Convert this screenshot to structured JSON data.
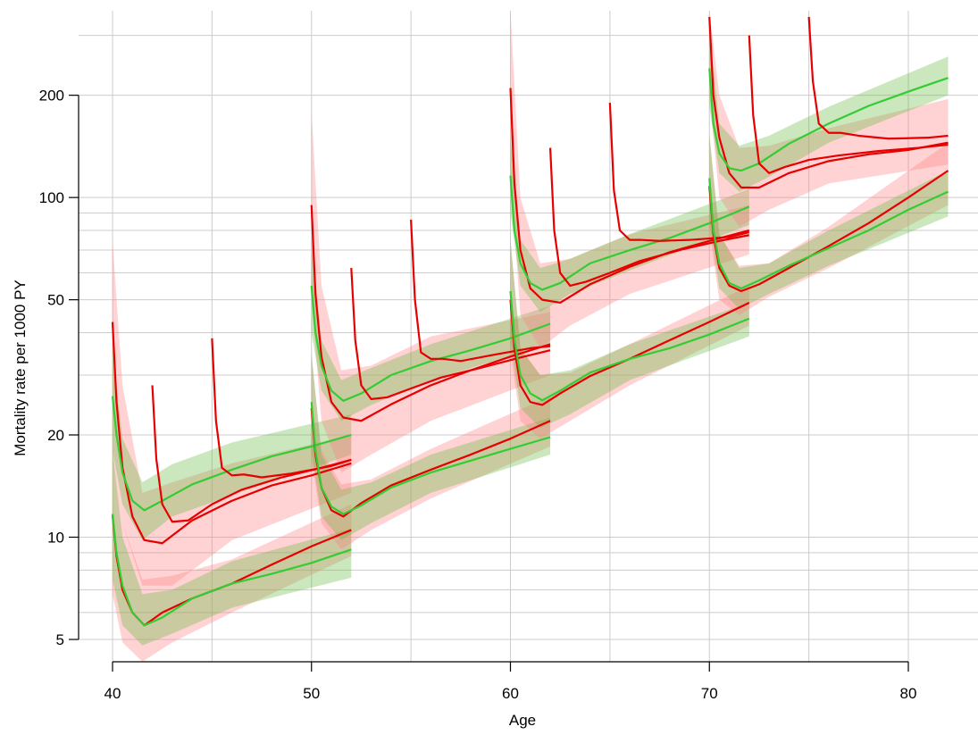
{
  "chart_data": {
    "type": "line",
    "xlabel": "Age",
    "ylabel": "Mortality rate per 1000 PY",
    "y_scale": "log",
    "xlim": [
      37.4,
      84.3
    ],
    "ylim": [
      4.4,
      330
    ],
    "x_ticks": [
      40,
      50,
      60,
      70,
      80
    ],
    "x_tick_labels": [
      "40",
      "50",
      "60",
      "70",
      "80"
    ],
    "y_ticks": [
      5,
      10,
      20,
      50,
      100,
      200
    ],
    "y_tick_labels": [
      "5",
      "10",
      "20",
      "50",
      "100",
      "200"
    ],
    "grid": true,
    "colors": {
      "red": "#e60000",
      "green": "#33cc33",
      "red_band": "#ff8080",
      "green_band": "#66bb44",
      "grid": "#cccccc"
    },
    "series": [
      {
        "color": "red",
        "x": [
          40,
          40.2,
          40.5,
          41,
          41.6,
          42.5,
          44,
          46,
          48,
          50,
          52
        ],
        "y": [
          11.6,
          8.8,
          7.0,
          6.0,
          5.5,
          6.0,
          6.6,
          7.3,
          8.3,
          9.4,
          10.5
        ]
      },
      {
        "color": "green",
        "x": [
          40,
          40.2,
          40.5,
          41,
          41.6,
          42.5,
          44,
          46,
          48,
          50,
          52
        ],
        "y": [
          11.7,
          9.0,
          7.2,
          6.0,
          5.5,
          5.8,
          6.6,
          7.3,
          7.8,
          8.4,
          9.2
        ]
      },
      {
        "color": "red",
        "x": [
          40,
          40.2,
          40.5,
          41,
          41.6,
          42.5,
          44,
          46,
          48,
          50,
          52
        ],
        "y": [
          43,
          25,
          16,
          11.5,
          9.8,
          9.6,
          11.2,
          12.8,
          14.2,
          15.2,
          16.5
        ]
      },
      {
        "color": "green",
        "x": [
          40,
          40.2,
          40.5,
          41,
          41.6,
          42.5,
          44,
          46,
          48,
          50,
          52
        ],
        "y": [
          26,
          20,
          15.5,
          12.8,
          12.0,
          12.8,
          14.3,
          15.8,
          17.3,
          18.5,
          20.0
        ]
      },
      {
        "color": "red",
        "x": [
          42,
          42.2,
          42.5,
          43,
          43.8,
          45,
          46.5,
          48.5,
          50.5,
          52
        ],
        "y": [
          28,
          17,
          12.5,
          11.1,
          11.2,
          12.5,
          13.8,
          15.0,
          16.0,
          16.9
        ]
      },
      {
        "color": "red",
        "x": [
          45,
          45.2,
          45.5,
          46,
          46.6,
          47.5,
          49,
          51,
          52
        ],
        "y": [
          38.5,
          22,
          16,
          15.2,
          15.3,
          15.0,
          15.4,
          16.2,
          16.9
        ]
      },
      {
        "color": "red",
        "x": [
          50,
          50.2,
          50.5,
          51,
          51.6,
          52.5,
          54,
          56,
          58,
          60,
          62
        ],
        "y": [
          24,
          17.5,
          14,
          12,
          11.5,
          12.6,
          14.2,
          15.8,
          17.5,
          19.5,
          22.0
        ]
      },
      {
        "color": "green",
        "x": [
          50,
          50.2,
          50.5,
          51,
          51.6,
          52.5,
          54,
          56,
          58,
          60,
          62
        ],
        "y": [
          25,
          18,
          14,
          12.3,
          11.7,
          12.4,
          14.0,
          15.5,
          16.8,
          18.2,
          19.7
        ]
      },
      {
        "color": "red",
        "x": [
          50,
          50.2,
          50.5,
          51,
          51.6,
          52.5,
          54,
          56,
          58,
          60,
          62
        ],
        "y": [
          95,
          52,
          34,
          25,
          22.5,
          22.0,
          24.6,
          28,
          31,
          34,
          37
        ]
      },
      {
        "color": "green",
        "x": [
          50,
          50.2,
          50.5,
          51,
          51.6,
          52.5,
          54,
          56,
          58,
          60,
          62
        ],
        "y": [
          55,
          40,
          32,
          27,
          25.2,
          26.5,
          30,
          33,
          35.5,
          38.5,
          42.5
        ]
      },
      {
        "color": "red",
        "x": [
          52,
          52.2,
          52.5,
          53,
          53.8,
          55,
          56.5,
          58.5,
          60.5,
          62
        ],
        "y": [
          62,
          38,
          28,
          25.5,
          25.8,
          27.4,
          29.5,
          31.5,
          33.8,
          35.5
        ]
      },
      {
        "color": "red",
        "x": [
          55,
          55.2,
          55.5,
          56,
          56.6,
          57.5,
          59,
          61,
          62
        ],
        "y": [
          86,
          50,
          35,
          33.5,
          33.5,
          33.0,
          34.3,
          36.0,
          36.5
        ]
      },
      {
        "color": "red",
        "x": [
          60,
          60.2,
          60.5,
          61,
          61.6,
          62.5,
          64,
          66,
          68,
          70,
          72
        ],
        "y": [
          50,
          36,
          28,
          25,
          24.5,
          26.5,
          29.8,
          33.5,
          38,
          43,
          49
        ]
      },
      {
        "color": "green",
        "x": [
          60,
          60.2,
          60.5,
          61,
          61.6,
          62.5,
          64,
          66,
          68,
          70,
          72
        ],
        "y": [
          53,
          38,
          30,
          26.5,
          25.3,
          27.0,
          30.5,
          33.5,
          36,
          39.5,
          44
        ]
      },
      {
        "color": "red",
        "x": [
          60,
          60.2,
          60.5,
          61,
          61.6,
          62.5,
          64,
          66,
          68,
          70,
          72
        ],
        "y": [
          210,
          110,
          70,
          54,
          50,
          49,
          55.5,
          62.5,
          69,
          74.5,
          80
        ]
      },
      {
        "color": "green",
        "x": [
          60,
          60.2,
          60.5,
          61,
          61.6,
          62.5,
          64,
          66,
          68,
          70,
          72
        ],
        "y": [
          116,
          80,
          64,
          56,
          53.5,
          56,
          64,
          70,
          76,
          84,
          94
        ]
      },
      {
        "color": "red",
        "x": [
          62,
          62.2,
          62.5,
          63,
          63.8,
          65,
          66.5,
          68.5,
          70.5,
          72
        ],
        "y": [
          140,
          80,
          60,
          55,
          56.5,
          60,
          65,
          70,
          74.5,
          77.5
        ]
      },
      {
        "color": "red",
        "x": [
          65,
          65.2,
          65.5,
          66,
          66.6,
          67.5,
          69,
          71,
          72
        ],
        "y": [
          190,
          105,
          80,
          75,
          75,
          74.5,
          75,
          76.5,
          79
        ]
      },
      {
        "color": "red",
        "x": [
          70,
          70.2,
          70.5,
          71,
          71.6,
          72.5,
          74,
          76,
          78,
          80,
          82
        ],
        "y": [
          108,
          78,
          62,
          55,
          53,
          55.5,
          62,
          72,
          84,
          100,
          120
        ]
      },
      {
        "color": "green",
        "x": [
          70,
          70.2,
          70.5,
          71,
          71.6,
          72.5,
          74,
          76,
          78,
          80,
          82
        ],
        "y": [
          114,
          80,
          64,
          56,
          54,
          57,
          63,
          71,
          80,
          92,
          104
        ]
      },
      {
        "color": "red",
        "x": [
          70,
          70.2,
          70.5,
          71,
          71.6,
          72.5,
          74,
          76,
          78,
          80,
          82
        ],
        "y": [
          340,
          200,
          150,
          118,
          107,
          107,
          118,
          128,
          134,
          138,
          145
        ]
      },
      {
        "color": "green",
        "x": [
          70,
          70.2,
          70.5,
          71,
          71.6,
          72.5,
          74,
          76,
          78,
          80,
          82
        ],
        "y": [
          240,
          165,
          135,
          122,
          120,
          126,
          144,
          165,
          186,
          205,
          225
        ]
      },
      {
        "color": "red",
        "x": [
          72,
          72.2,
          72.5,
          73,
          73.8,
          75,
          76.5,
          78.5,
          80.5,
          82
        ],
        "y": [
          300,
          175,
          126,
          118,
          123,
          129,
          133,
          137,
          140,
          143
        ]
      },
      {
        "color": "red",
        "x": [
          75,
          75.2,
          75.5,
          76,
          76.6,
          77.5,
          79,
          81,
          82
        ],
        "y": [
          340,
          220,
          165,
          155,
          155,
          152,
          149,
          150,
          152
        ]
      }
    ],
    "bands": [
      {
        "color": "red_band",
        "x": [
          40,
          40.5,
          41.5,
          43,
          46,
          52
        ],
        "lo": [
          6.8,
          4.9,
          4.3,
          4.9,
          6.0,
          8.8
        ],
        "hi": [
          20,
          11,
          7.5,
          7.7,
          8.6,
          12.5
        ]
      },
      {
        "color": "green_band",
        "x": [
          40,
          40.5,
          41.5,
          43,
          46,
          52
        ],
        "lo": [
          7.5,
          5.5,
          4.8,
          5.2,
          6.2,
          7.6
        ],
        "hi": [
          18,
          10,
          6.8,
          7.0,
          8.5,
          10.6
        ]
      },
      {
        "color": "red_band",
        "x": [
          40,
          40.5,
          41.5,
          43,
          46,
          52
        ],
        "lo": [
          20,
          11,
          7.2,
          7.2,
          9.8,
          13.5
        ],
        "hi": [
          75,
          28,
          13.5,
          14.5,
          16.5,
          20
        ]
      },
      {
        "color": "green_band",
        "x": [
          40,
          40.5,
          41.5,
          43,
          46,
          52
        ],
        "lo": [
          18,
          12.5,
          9.8,
          11.5,
          13.3,
          17.5
        ],
        "hi": [
          36,
          19.5,
          14.5,
          16.4,
          19.0,
          23
        ]
      },
      {
        "color": "red_band",
        "x": [
          50,
          50.5,
          51.5,
          53,
          56,
          62
        ],
        "lo": [
          17,
          11,
          9.2,
          10.5,
          13,
          18.5
        ],
        "hi": [
          34,
          18,
          14.3,
          14.8,
          18.2,
          26
        ]
      },
      {
        "color": "green_band",
        "x": [
          50,
          50.5,
          51.5,
          53,
          56,
          62
        ],
        "lo": [
          18,
          11.5,
          9.8,
          11,
          13.5,
          17.5
        ],
        "hi": [
          35,
          17.5,
          13.8,
          14.5,
          17.5,
          22.5
        ]
      },
      {
        "color": "red_band",
        "x": [
          50,
          50.5,
          51.5,
          53,
          56,
          62
        ],
        "lo": [
          50,
          22,
          15.5,
          17.5,
          22,
          30
        ],
        "hi": [
          180,
          55,
          31,
          32,
          39,
          46
        ]
      },
      {
        "color": "green_band",
        "x": [
          50,
          50.5,
          51.5,
          53,
          56,
          62
        ],
        "lo": [
          40,
          27,
          22,
          24.5,
          29,
          37
        ],
        "hi": [
          75,
          38,
          29,
          31.5,
          37,
          48
        ]
      },
      {
        "color": "red_band",
        "x": [
          60,
          60.5,
          61.5,
          63,
          66,
          72
        ],
        "lo": [
          35,
          22,
          19.5,
          22,
          28,
          42
        ],
        "hi": [
          75,
          36,
          30,
          30.5,
          37,
          55
        ]
      },
      {
        "color": "green_band",
        "x": [
          60,
          60.5,
          61.5,
          63,
          66,
          72
        ],
        "lo": [
          38,
          24,
          21,
          23,
          29,
          39
        ],
        "hi": [
          75,
          36,
          30,
          31,
          37,
          49
        ]
      },
      {
        "color": "red_band",
        "x": [
          60,
          60.5,
          61.5,
          63,
          66,
          72
        ],
        "lo": [
          120,
          45,
          36,
          42,
          52,
          68
        ],
        "hi": [
          360,
          100,
          64,
          66,
          78,
          95
        ]
      },
      {
        "color": "green_band",
        "x": [
          60,
          60.5,
          61.5,
          63,
          66,
          72
        ],
        "lo": [
          90,
          55,
          46,
          52,
          61,
          83
        ],
        "hi": [
          150,
          75,
          62,
          66,
          78,
          106
        ]
      },
      {
        "color": "red_band",
        "x": [
          70,
          70.5,
          71.5,
          73,
          76,
          82
        ],
        "lo": [
          80,
          50,
          45,
          51,
          62,
          95
        ],
        "hi": [
          150,
          78,
          63,
          64,
          82,
          145
        ]
      },
      {
        "color": "green_band",
        "x": [
          70,
          70.5,
          71.5,
          73,
          76,
          82
        ],
        "lo": [
          85,
          54,
          47,
          52,
          63,
          88
        ],
        "hi": [
          155,
          78,
          62,
          64,
          80,
          120
        ]
      },
      {
        "color": "red_band",
        "x": [
          70,
          70.5,
          71.5,
          73,
          76,
          82
        ],
        "lo": [
          200,
          100,
          82,
          92,
          110,
          125
        ],
        "hi": [
          520,
          200,
          140,
          142,
          160,
          195
        ]
      },
      {
        "color": "green_band",
        "x": [
          70,
          70.5,
          71.5,
          73,
          76,
          82
        ],
        "lo": [
          185,
          118,
          104,
          115,
          145,
          200
        ],
        "hi": [
          310,
          165,
          142,
          152,
          185,
          260
        ]
      }
    ]
  }
}
